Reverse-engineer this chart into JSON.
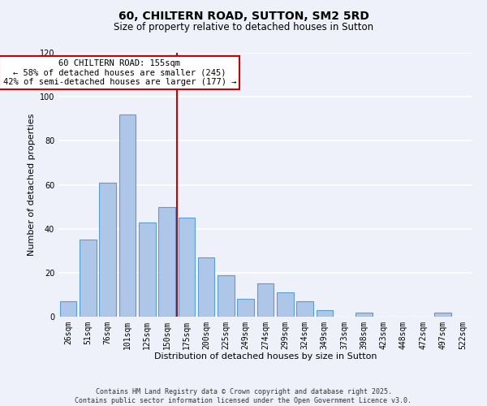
{
  "title": "60, CHILTERN ROAD, SUTTON, SM2 5RD",
  "subtitle": "Size of property relative to detached houses in Sutton",
  "xlabel": "Distribution of detached houses by size in Sutton",
  "ylabel": "Number of detached properties",
  "bar_labels": [
    "26sqm",
    "51sqm",
    "76sqm",
    "101sqm",
    "125sqm",
    "150sqm",
    "175sqm",
    "200sqm",
    "225sqm",
    "249sqm",
    "274sqm",
    "299sqm",
    "324sqm",
    "349sqm",
    "373sqm",
    "398sqm",
    "423sqm",
    "448sqm",
    "472sqm",
    "497sqm",
    "522sqm"
  ],
  "bar_values": [
    7,
    35,
    61,
    92,
    43,
    50,
    45,
    27,
    19,
    8,
    15,
    11,
    7,
    3,
    0,
    2,
    0,
    0,
    0,
    2,
    0
  ],
  "bar_color": "#aec6e8",
  "bar_edge_color": "#5a9fd4",
  "vline_x": 5.5,
  "vline_color": "#cc0000",
  "annotation_line1": "60 CHILTERN ROAD: 155sqm",
  "annotation_line2": "← 58% of detached houses are smaller (245)",
  "annotation_line3": "42% of semi-detached houses are larger (177) →",
  "box_color": "#ffffff",
  "box_edge_color": "#cc0000",
  "ylim": [
    0,
    120
  ],
  "yticks": [
    0,
    20,
    40,
    60,
    80,
    100,
    120
  ],
  "footer_line1": "Contains HM Land Registry data © Crown copyright and database right 2025.",
  "footer_line2": "Contains public sector information licensed under the Open Government Licence v3.0.",
  "bg_color": "#eef1f9",
  "grid_color": "#ffffff",
  "title_fontsize": 10,
  "subtitle_fontsize": 8.5,
  "axis_label_fontsize": 8,
  "tick_fontsize": 7,
  "annotation_fontsize": 7.5,
  "footer_fontsize": 6
}
